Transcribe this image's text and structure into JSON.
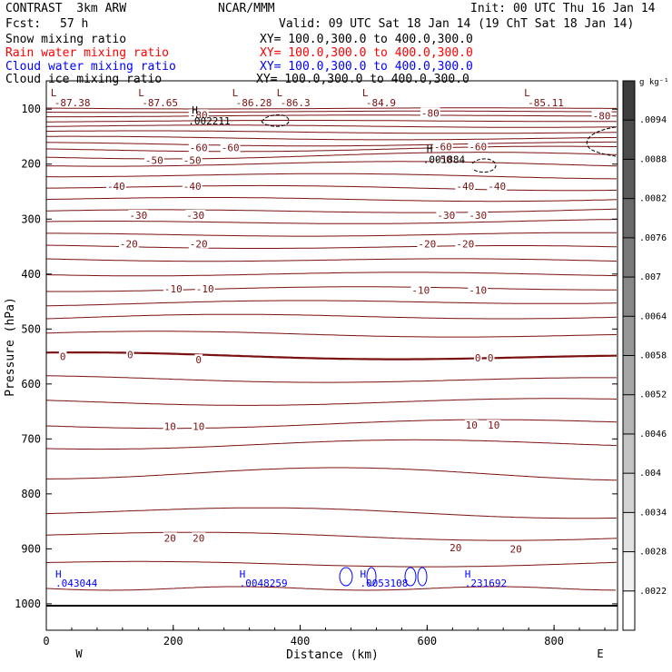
{
  "header": {
    "title": "CONTRAST  3km ARW",
    "org": "NCAR/MMM",
    "init": "Init: 00 UTC Thu 16 Jan 14",
    "fcst_label": "Fcst:",
    "fcst_value": "57 h",
    "valid": "Valid: 09 UTC Sat 18 Jan 14 (19 ChT Sat 18 Jan 14)"
  },
  "fields": [
    {
      "name": "Snow mixing ratio",
      "xy": "XY= 100.0,300.0 to 400.0,300.0",
      "color": "#000000"
    },
    {
      "name": "Rain water mixing ratio",
      "xy": "XY= 100.0,300.0 to 400.0,300.0",
      "color": "#ff0000"
    },
    {
      "name": "Cloud water mixing ratio",
      "xy": "XY= 100.0,300.0 to 400.0,300.0",
      "color": "#0000ff"
    },
    {
      "name": "Cloud ice mixing ratio",
      "xy": "XY= 100.0,300.0 to 400.0,300.0",
      "color": "#000000"
    }
  ],
  "chart_data": {
    "type": "contour",
    "xlabel": "Distance (km)",
    "ylabel": "Pressure (hPa)",
    "xlim": [
      0,
      900
    ],
    "ylim": [
      1050,
      50
    ],
    "x_ticks": [
      "0",
      "200",
      "400",
      "600",
      "800"
    ],
    "y_ticks": [
      "100",
      "200",
      "300",
      "400",
      "500",
      "600",
      "700",
      "800",
      "900",
      "1000"
    ],
    "x_end_labels": {
      "left": "W",
      "right": "E"
    },
    "contour_color": "#7a1010",
    "contour_labels": [
      {
        "text": "-80",
        "x": 240,
        "p": 110
      },
      {
        "text": "-80",
        "x": 605,
        "p": 107
      },
      {
        "text": "-80",
        "x": 875,
        "p": 112
      },
      {
        "text": "-60",
        "x": 240,
        "p": 170
      },
      {
        "text": "-60",
        "x": 290,
        "p": 170
      },
      {
        "text": "-60",
        "x": 625,
        "p": 168
      },
      {
        "text": "-60",
        "x": 680,
        "p": 168
      },
      {
        "text": "-50",
        "x": 170,
        "p": 193
      },
      {
        "text": "-50",
        "x": 230,
        "p": 193
      },
      {
        "text": "-50",
        "x": 625,
        "p": 191
      },
      {
        "text": "-40",
        "x": 110,
        "p": 240
      },
      {
        "text": "-40",
        "x": 230,
        "p": 240
      },
      {
        "text": "-40",
        "x": 660,
        "p": 240
      },
      {
        "text": "-40",
        "x": 710,
        "p": 240
      },
      {
        "text": "-30",
        "x": 145,
        "p": 293
      },
      {
        "text": "-30",
        "x": 235,
        "p": 293
      },
      {
        "text": "-30",
        "x": 630,
        "p": 293
      },
      {
        "text": "-30",
        "x": 680,
        "p": 293
      },
      {
        "text": "-20",
        "x": 130,
        "p": 345
      },
      {
        "text": "-20",
        "x": 240,
        "p": 345
      },
      {
        "text": "-20",
        "x": 600,
        "p": 345
      },
      {
        "text": "-20",
        "x": 660,
        "p": 345
      },
      {
        "text": "-10",
        "x": 200,
        "p": 427
      },
      {
        "text": "-10",
        "x": 250,
        "p": 427
      },
      {
        "text": "-10",
        "x": 590,
        "p": 429
      },
      {
        "text": "-10",
        "x": 680,
        "p": 429
      },
      {
        "text": "0",
        "x": 26,
        "p": 550
      },
      {
        "text": "0",
        "x": 132,
        "p": 547
      },
      {
        "text": "0",
        "x": 240,
        "p": 556
      },
      {
        "text": "0",
        "x": 680,
        "p": 552
      },
      {
        "text": "0",
        "x": 700,
        "p": 552
      },
      {
        "text": "10",
        "x": 195,
        "p": 677
      },
      {
        "text": "10",
        "x": 240,
        "p": 677
      },
      {
        "text": "10",
        "x": 670,
        "p": 675
      },
      {
        "text": "10",
        "x": 705,
        "p": 675
      },
      {
        "text": "20",
        "x": 195,
        "p": 880
      },
      {
        "text": "20",
        "x": 240,
        "p": 880
      },
      {
        "text": "20",
        "x": 645,
        "p": 898
      },
      {
        "text": "20",
        "x": 740,
        "p": 900
      }
    ],
    "temp_minima": [
      {
        "label": "L",
        "value": "-87.38",
        "x": 24
      },
      {
        "label": "L",
        "value": "-87.65",
        "x": 162
      },
      {
        "label": "L",
        "value": "-86.28",
        "x": 310
      },
      {
        "label": "L",
        "value": "-86.3",
        "x": 380
      },
      {
        "label": "L",
        "value": "-84.9",
        "x": 515
      },
      {
        "label": "L",
        "value": "-85.11",
        "x": 770
      }
    ],
    "ice_maxima": [
      {
        "label": "H",
        "value": ".002211",
        "x": 255,
        "p": 118
      },
      {
        "label": "H",
        "value": ".001884",
        "x": 625,
        "p": 188
      }
    ],
    "cloud_water_maxima": [
      {
        "label": "H",
        "value": ".043044",
        "x": 20
      },
      {
        "label": "H",
        "value": ".0048259",
        "x": 310
      },
      {
        "label": "H",
        "value": ".0053108",
        "x": 500
      },
      {
        "label": "H",
        "value": ".231692",
        "x": 665
      }
    ],
    "colorbar": {
      "unit": "g kg⁻¹",
      "ticks": [
        ".0094",
        ".0088",
        ".0082",
        ".0076",
        ".007",
        ".0064",
        ".0058",
        ".0052",
        ".0046",
        ".004",
        ".0034",
        ".0028",
        ".0022"
      ]
    }
  }
}
